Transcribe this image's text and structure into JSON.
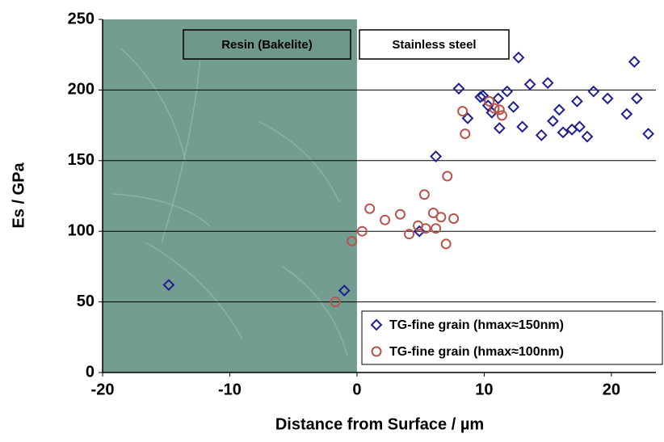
{
  "chart_data": {
    "type": "scatter",
    "x_label": "Distance from Surface / µm",
    "y_label": "Es / GPa",
    "annotations": [
      "Resin (Bakelite)",
      "Stainless steel"
    ],
    "xlim": [
      -20,
      23.5
    ],
    "xticks": [
      -20,
      -10,
      0,
      10,
      20
    ],
    "ylim": [
      0,
      250
    ],
    "yticks": [
      0,
      50,
      100,
      150,
      200,
      250
    ],
    "grid": true,
    "legend": "lower right",
    "series": [
      {
        "name": "TG-fine grain (hmax≈150nm)",
        "color": "#1f1f8f",
        "marker": "diamond",
        "x": [
          -14.8,
          -1.0,
          4.9,
          6.2,
          8.0,
          8.7,
          9.7,
          9.9,
          10.3,
          10.6,
          11.1,
          11.2,
          11.8,
          12.3,
          12.7,
          13.0,
          13.6,
          14.5,
          15.0,
          15.4,
          15.9,
          16.2,
          16.9,
          17.3,
          17.5,
          18.1,
          18.6,
          19.7,
          21.2,
          21.8,
          22.0,
          22.9
        ],
        "values": [
          62,
          58,
          100,
          153,
          201,
          180,
          195,
          196,
          189,
          184,
          194,
          173,
          199,
          188,
          223,
          174,
          204,
          168,
          205,
          178,
          186,
          170,
          172,
          192,
          174,
          167,
          199,
          194,
          183,
          220,
          194,
          169
        ]
      },
      {
        "name": "TG-fine grain (hmax≈100nm)",
        "color": "#b8544c",
        "marker": "circle",
        "x": [
          -1.7,
          -0.4,
          0.4,
          1.0,
          2.2,
          3.4,
          4.1,
          4.8,
          5.4,
          5.3,
          6.0,
          6.2,
          6.6,
          7.0,
          7.1,
          7.6,
          8.3,
          8.5,
          10.4,
          10.8,
          11.2,
          11.4
        ],
        "values": [
          50,
          93,
          100,
          116,
          108,
          112,
          98,
          104,
          102,
          126,
          113,
          102,
          110,
          91,
          139,
          109,
          185,
          169,
          192,
          187,
          186,
          182
        ]
      }
    ]
  }
}
